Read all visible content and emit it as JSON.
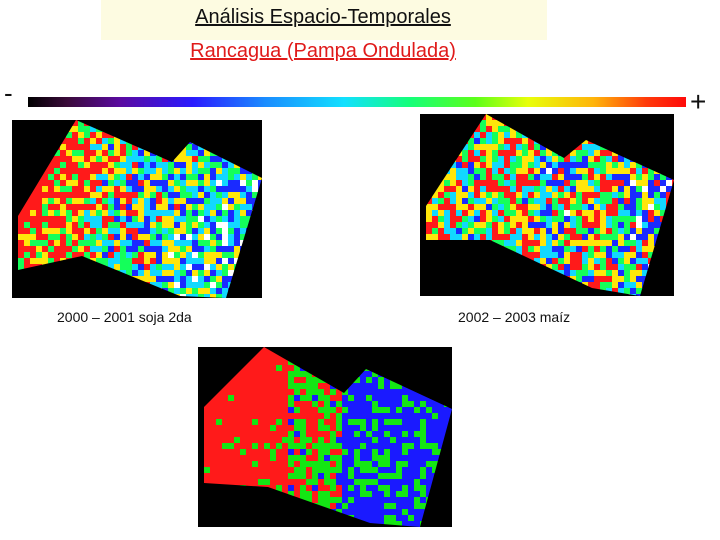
{
  "title": {
    "line1": "Análisis Espacio-Temporales",
    "line2": "Rancagua (Pampa Ondulada)"
  },
  "scale": {
    "low_label": "-",
    "high_label": "+",
    "colors": [
      "#000000",
      "#5a0aa0",
      "#2a1aff",
      "#12e0ff",
      "#14ff7a",
      "#e8ff0a",
      "#ff3a0a",
      "#ff0a0a"
    ]
  },
  "maps": [
    {
      "caption": "2000 – 2001 soja 2da",
      "palette": [
        "#ff1a1a",
        "#ffe60a",
        "#14ff5a",
        "#12d8ff",
        "#1a2aff",
        "#ffffff"
      ]
    },
    {
      "caption": "2002 – 2003 maíz",
      "palette": [
        "#ff1a1a",
        "#ffe60a",
        "#14ff5a",
        "#12d8ff",
        "#1a2aff",
        "#ffffff"
      ]
    },
    {
      "caption": "",
      "palette": [
        "#ff1a1a",
        "#14e614",
        "#1a1aff"
      ]
    }
  ]
}
